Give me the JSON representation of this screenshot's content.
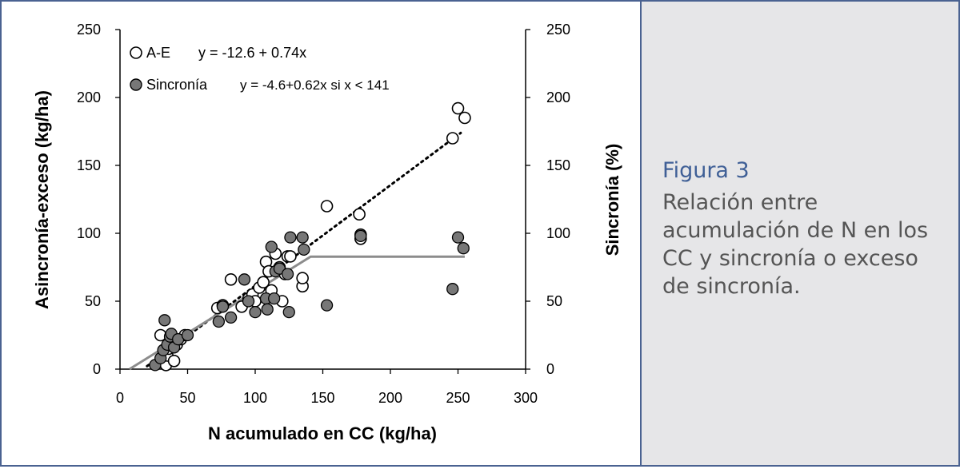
{
  "caption": {
    "title": "Figura 3",
    "text": "Relación entre acumulación de N en los CC y sincronía o exceso de sincronía."
  },
  "colors": {
    "frame": "#4a6291",
    "caption_title": "#3f5f96",
    "caption_text": "#555555",
    "caption_bg": "#e6e6e8",
    "sincronia_fill": "#777777",
    "fit_line_solid": "#8c8c8c"
  },
  "chart_data": {
    "type": "scatter",
    "xlabel": "N acumulado en CC (kg/ha)",
    "ylabel": "Asincronía-exceso (kg/ha)",
    "y2label": "Sincronía (%)",
    "xlim": [
      0,
      300
    ],
    "ylim": [
      0,
      250
    ],
    "y2lim": [
      0,
      250
    ],
    "x_ticks": [
      0,
      50,
      100,
      150,
      200,
      250,
      300
    ],
    "y_ticks": [
      0,
      50,
      100,
      150,
      200,
      250
    ],
    "y2_ticks": [
      0,
      50,
      100,
      150,
      200,
      250
    ],
    "grid": false,
    "legend": {
      "position": "top-left",
      "entries": [
        {
          "series": "A-E",
          "label": "A-E",
          "equation": "y = -12.6 + 0.74x"
        },
        {
          "series": "Sincronía",
          "label": "Sincronía",
          "equation": "y = -4.6+0.62x si x < 141"
        }
      ]
    },
    "series": [
      {
        "name": "A-E",
        "marker": "open-circle",
        "axis": "left",
        "points": [
          [
            30,
            25
          ],
          [
            33,
            6
          ],
          [
            34,
            3
          ],
          [
            35,
            10
          ],
          [
            36,
            15
          ],
          [
            38,
            20
          ],
          [
            40,
            6
          ],
          [
            42,
            18
          ],
          [
            45,
            22
          ],
          [
            48,
            25
          ],
          [
            72,
            45
          ],
          [
            76,
            47
          ],
          [
            82,
            66
          ],
          [
            90,
            46
          ],
          [
            95,
            52
          ],
          [
            98,
            55
          ],
          [
            100,
            50
          ],
          [
            103,
            60
          ],
          [
            106,
            64
          ],
          [
            108,
            79
          ],
          [
            110,
            72
          ],
          [
            112,
            58
          ],
          [
            115,
            85
          ],
          [
            118,
            75
          ],
          [
            120,
            50
          ],
          [
            122,
            70
          ],
          [
            124,
            83
          ],
          [
            126,
            83
          ],
          [
            135,
            61
          ],
          [
            135,
            67
          ],
          [
            153,
            120
          ],
          [
            177,
            114
          ],
          [
            178,
            96
          ],
          [
            178,
            99
          ],
          [
            246,
            170
          ],
          [
            250,
            192
          ],
          [
            255,
            185
          ]
        ]
      },
      {
        "name": "Sincronía",
        "marker": "filled-circle",
        "axis": "right",
        "points": [
          [
            26,
            3
          ],
          [
            30,
            8
          ],
          [
            32,
            14
          ],
          [
            33,
            36
          ],
          [
            35,
            18
          ],
          [
            37,
            24
          ],
          [
            38,
            26
          ],
          [
            40,
            16
          ],
          [
            43,
            22
          ],
          [
            50,
            25
          ],
          [
            73,
            35
          ],
          [
            76,
            46
          ],
          [
            82,
            38
          ],
          [
            92,
            66
          ],
          [
            95,
            50
          ],
          [
            100,
            42
          ],
          [
            108,
            52
          ],
          [
            109,
            44
          ],
          [
            112,
            90
          ],
          [
            114,
            52
          ],
          [
            115,
            72
          ],
          [
            118,
            74
          ],
          [
            124,
            70
          ],
          [
            125,
            42
          ],
          [
            126,
            97
          ],
          [
            135,
            97
          ],
          [
            136,
            88
          ],
          [
            153,
            47
          ],
          [
            178,
            98
          ],
          [
            246,
            59
          ],
          [
            250,
            97
          ],
          [
            254,
            89
          ]
        ]
      }
    ],
    "fit_lines": [
      {
        "series": "A-E",
        "style": "dotted",
        "x": [
          20,
          252
        ],
        "y": [
          2.2,
          173.9
        ]
      },
      {
        "series": "Sincronía",
        "style": "solid",
        "x": [
          7,
          141,
          255
        ],
        "y": [
          0,
          82.8,
          82.8
        ]
      }
    ]
  }
}
